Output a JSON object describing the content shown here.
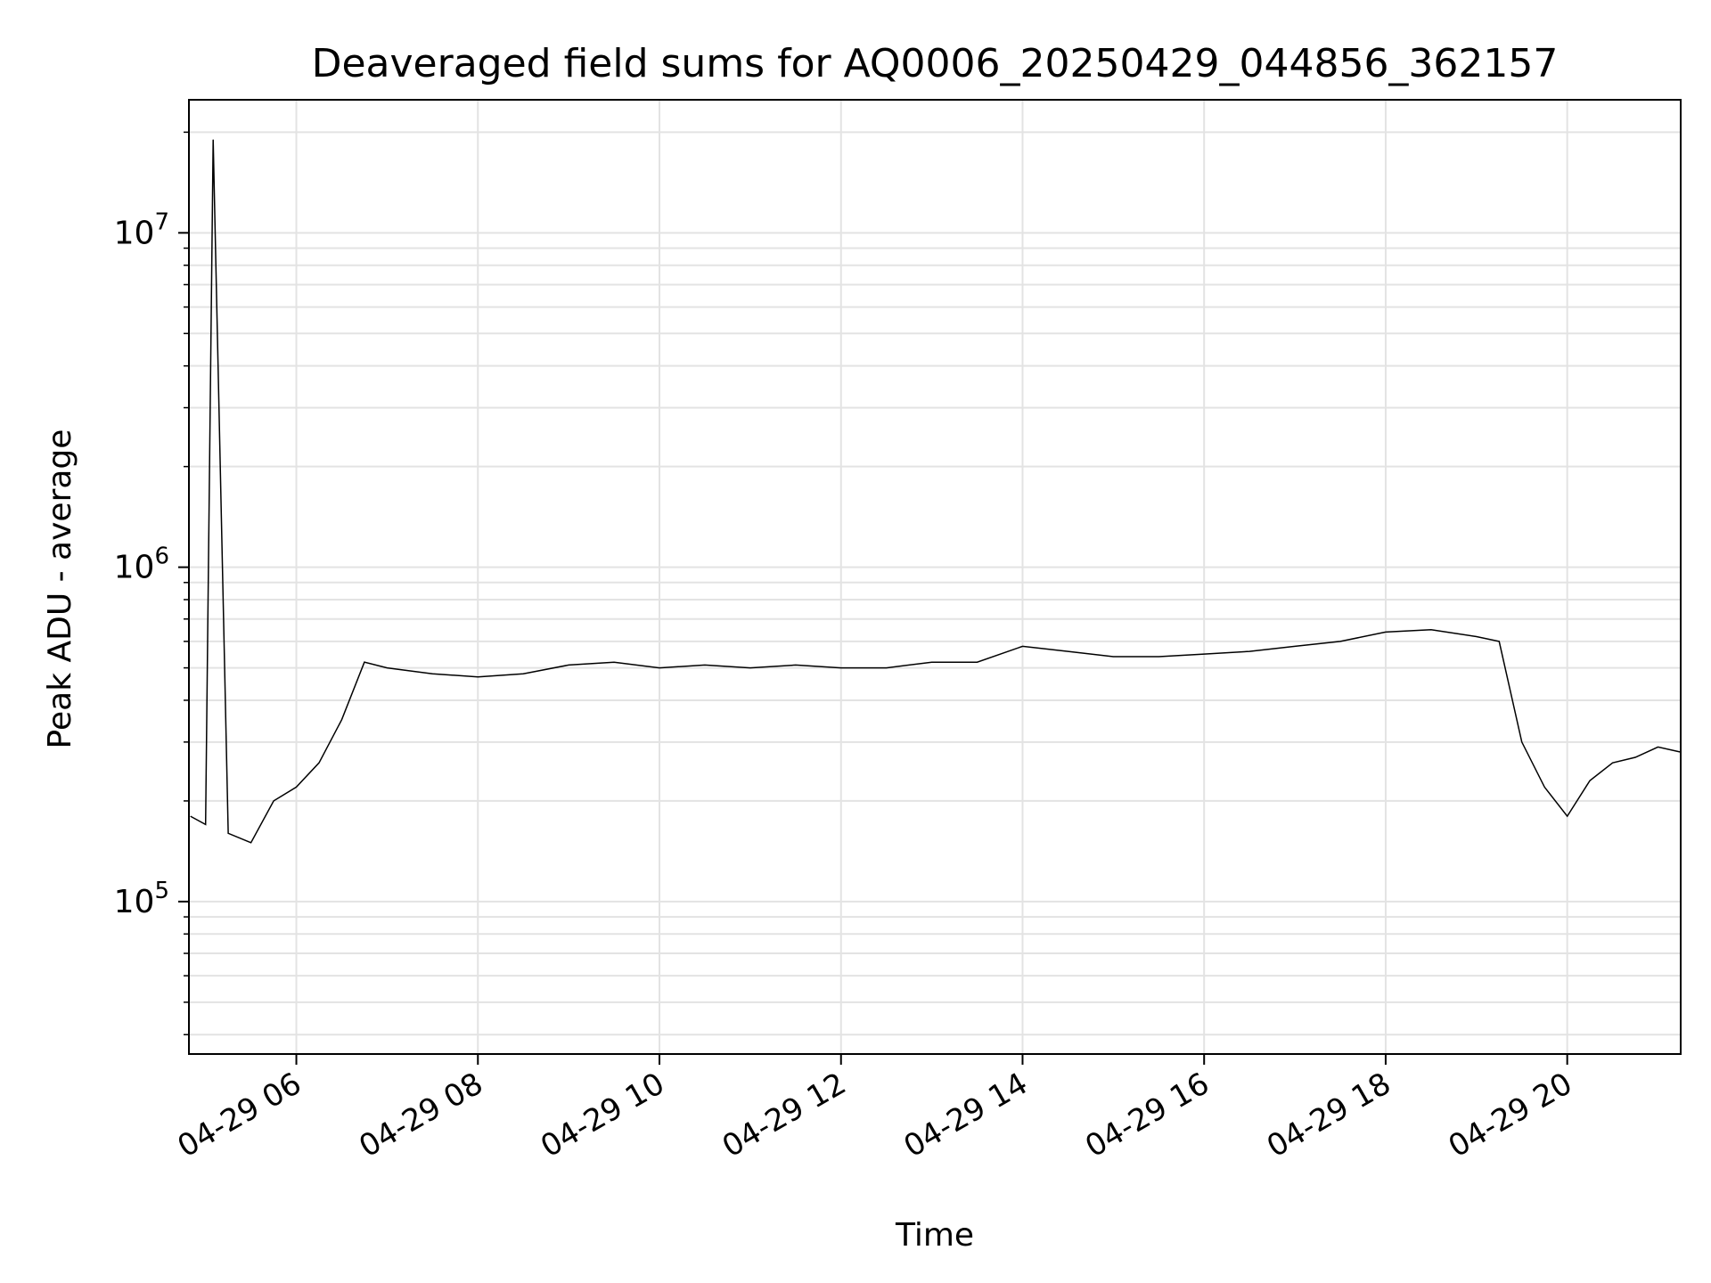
{
  "chart_data": {
    "type": "line",
    "title": "Deaveraged field sums for AQ0006_20250429_044856_362157",
    "xlabel": "Time",
    "ylabel": "Peak ADU - average",
    "yscale": "log",
    "xlim": [
      "2025-04-29T04:49:00",
      "2025-04-29T21:15:00"
    ],
    "ylim": [
      35000,
      25000000
    ],
    "grid": true,
    "x_ticks": [
      {
        "value": "2025-04-29T06:00:00",
        "label": "04-29 06"
      },
      {
        "value": "2025-04-29T08:00:00",
        "label": "04-29 08"
      },
      {
        "value": "2025-04-29T10:00:00",
        "label": "04-29 10"
      },
      {
        "value": "2025-04-29T12:00:00",
        "label": "04-29 12"
      },
      {
        "value": "2025-04-29T14:00:00",
        "label": "04-29 14"
      },
      {
        "value": "2025-04-29T16:00:00",
        "label": "04-29 16"
      },
      {
        "value": "2025-04-29T18:00:00",
        "label": "04-29 18"
      },
      {
        "value": "2025-04-29T20:00:00",
        "label": "04-29 20"
      }
    ],
    "y_ticks": [
      {
        "value": 100000,
        "base": "10",
        "exp": "5"
      },
      {
        "value": 1000000,
        "base": "10",
        "exp": "6"
      },
      {
        "value": 10000000,
        "base": "10",
        "exp": "7"
      }
    ],
    "series": [
      {
        "color": "#000000",
        "x": [
          "2025-04-29T04:50:00",
          "2025-04-29T05:00:00",
          "2025-04-29T05:05:00",
          "2025-04-29T05:15:00",
          "2025-04-29T05:30:00",
          "2025-04-29T05:45:00",
          "2025-04-29T06:00:00",
          "2025-04-29T06:15:00",
          "2025-04-29T06:30:00",
          "2025-04-29T06:45:00",
          "2025-04-29T07:00:00",
          "2025-04-29T07:30:00",
          "2025-04-29T08:00:00",
          "2025-04-29T08:30:00",
          "2025-04-29T09:00:00",
          "2025-04-29T09:30:00",
          "2025-04-29T10:00:00",
          "2025-04-29T10:30:00",
          "2025-04-29T11:00:00",
          "2025-04-29T11:30:00",
          "2025-04-29T12:00:00",
          "2025-04-29T12:30:00",
          "2025-04-29T13:00:00",
          "2025-04-29T13:30:00",
          "2025-04-29T14:00:00",
          "2025-04-29T14:30:00",
          "2025-04-29T15:00:00",
          "2025-04-29T15:30:00",
          "2025-04-29T16:00:00",
          "2025-04-29T16:30:00",
          "2025-04-29T17:00:00",
          "2025-04-29T17:30:00",
          "2025-04-29T18:00:00",
          "2025-04-29T18:30:00",
          "2025-04-29T19:00:00",
          "2025-04-29T19:15:00",
          "2025-04-29T19:30:00",
          "2025-04-29T19:45:00",
          "2025-04-29T20:00:00",
          "2025-04-29T20:15:00",
          "2025-04-29T20:30:00",
          "2025-04-29T20:45:00",
          "2025-04-29T21:00:00",
          "2025-04-29T21:15:00"
        ],
        "y": [
          180000,
          170000,
          19000000,
          160000,
          150000,
          200000,
          220000,
          260000,
          350000,
          520000,
          500000,
          480000,
          470000,
          480000,
          510000,
          520000,
          500000,
          510000,
          500000,
          510000,
          500000,
          500000,
          520000,
          520000,
          580000,
          560000,
          540000,
          540000,
          550000,
          560000,
          580000,
          600000,
          640000,
          650000,
          620000,
          600000,
          300000,
          220000,
          180000,
          230000,
          260000,
          270000,
          290000,
          280000
        ]
      }
    ]
  }
}
